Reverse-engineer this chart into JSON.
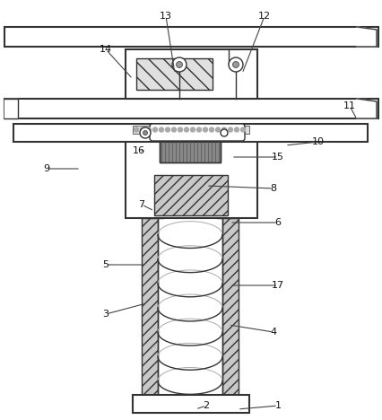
{
  "bg_color": "#ffffff",
  "lc": "#333333",
  "hatch_gray": "#c8c8c8",
  "annotations": [
    [
      "1",
      310,
      452,
      265,
      456
    ],
    [
      "2",
      230,
      452,
      218,
      456
    ],
    [
      "3",
      118,
      350,
      163,
      338
    ],
    [
      "4",
      305,
      370,
      255,
      362
    ],
    [
      "5",
      118,
      295,
      163,
      295
    ],
    [
      "6",
      310,
      248,
      256,
      248
    ],
    [
      "7",
      158,
      228,
      172,
      235
    ],
    [
      "8",
      305,
      210,
      230,
      207
    ],
    [
      "9",
      52,
      188,
      90,
      188
    ],
    [
      "10",
      355,
      158,
      318,
      162
    ],
    [
      "11",
      390,
      118,
      398,
      133
    ],
    [
      "12",
      295,
      18,
      270,
      82
    ],
    [
      "13",
      185,
      18,
      195,
      82
    ],
    [
      "14",
      118,
      55,
      148,
      88
    ],
    [
      "15",
      310,
      175,
      258,
      175
    ],
    [
      "16",
      155,
      168,
      163,
      168
    ],
    [
      "17",
      310,
      318,
      256,
      318
    ]
  ]
}
